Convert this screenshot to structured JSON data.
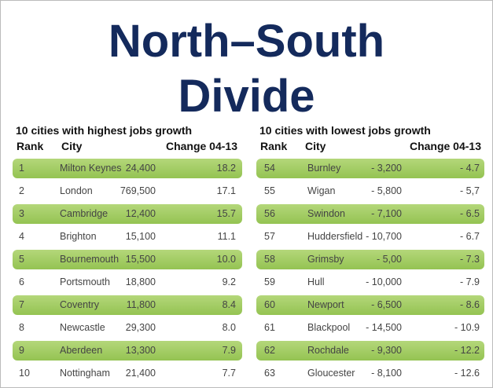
{
  "header": {
    "title_line1": "North–South",
    "title_line2": "Divide"
  },
  "tables": [
    {
      "caption": "10 cities with highest jobs growth",
      "headers": [
        "Rank",
        "City",
        "Change 04-13"
      ],
      "rows": [
        [
          "1",
          "Milton Keynes",
          "24,400",
          "18.2"
        ],
        [
          "2",
          "London",
          "769,500",
          "17.1"
        ],
        [
          "3",
          "Cambridge",
          "12,400",
          "15.7"
        ],
        [
          "4",
          "Brighton",
          "15,100",
          "11.1"
        ],
        [
          "5",
          "Bournemouth",
          "15,500",
          "10.0"
        ],
        [
          "6",
          "Portsmouth",
          "18,800",
          "9.2"
        ],
        [
          "7",
          "Coventry",
          "11,800",
          "8.4"
        ],
        [
          "8",
          "Newcastle",
          "29,300",
          "8.0"
        ],
        [
          "9",
          "Aberdeen",
          "13,300",
          "7.9"
        ],
        [
          "10",
          "Nottingham",
          "21,400",
          "7.7"
        ]
      ]
    },
    {
      "caption": "10 cities with lowest jobs growth",
      "headers": [
        "Rank",
        "City",
        "Change 04-13"
      ],
      "rows": [
        [
          "54",
          "Burnley",
          "- 3,200",
          "- 4.7"
        ],
        [
          "55",
          "Wigan",
          "- 5,800",
          "- 5,7"
        ],
        [
          "56",
          "Swindon",
          "- 7,100",
          "- 6.5"
        ],
        [
          "57",
          "Huddersfield",
          "- 10,700",
          "- 6.7"
        ],
        [
          "58",
          "Grimsby",
          "- 5,00",
          "- 7.3"
        ],
        [
          "59",
          "Hull",
          "- 10,000",
          "- 7.9"
        ],
        [
          "60",
          "Newport",
          "- 6,500",
          "- 8.6"
        ],
        [
          "61",
          "Blackpool",
          "- 14,500",
          "- 10.9"
        ],
        [
          "62",
          "Rochdale",
          "- 9,300",
          "- 12.2"
        ],
        [
          "63",
          "Gloucester",
          "- 8,100",
          "- 12.6"
        ]
      ]
    }
  ]
}
